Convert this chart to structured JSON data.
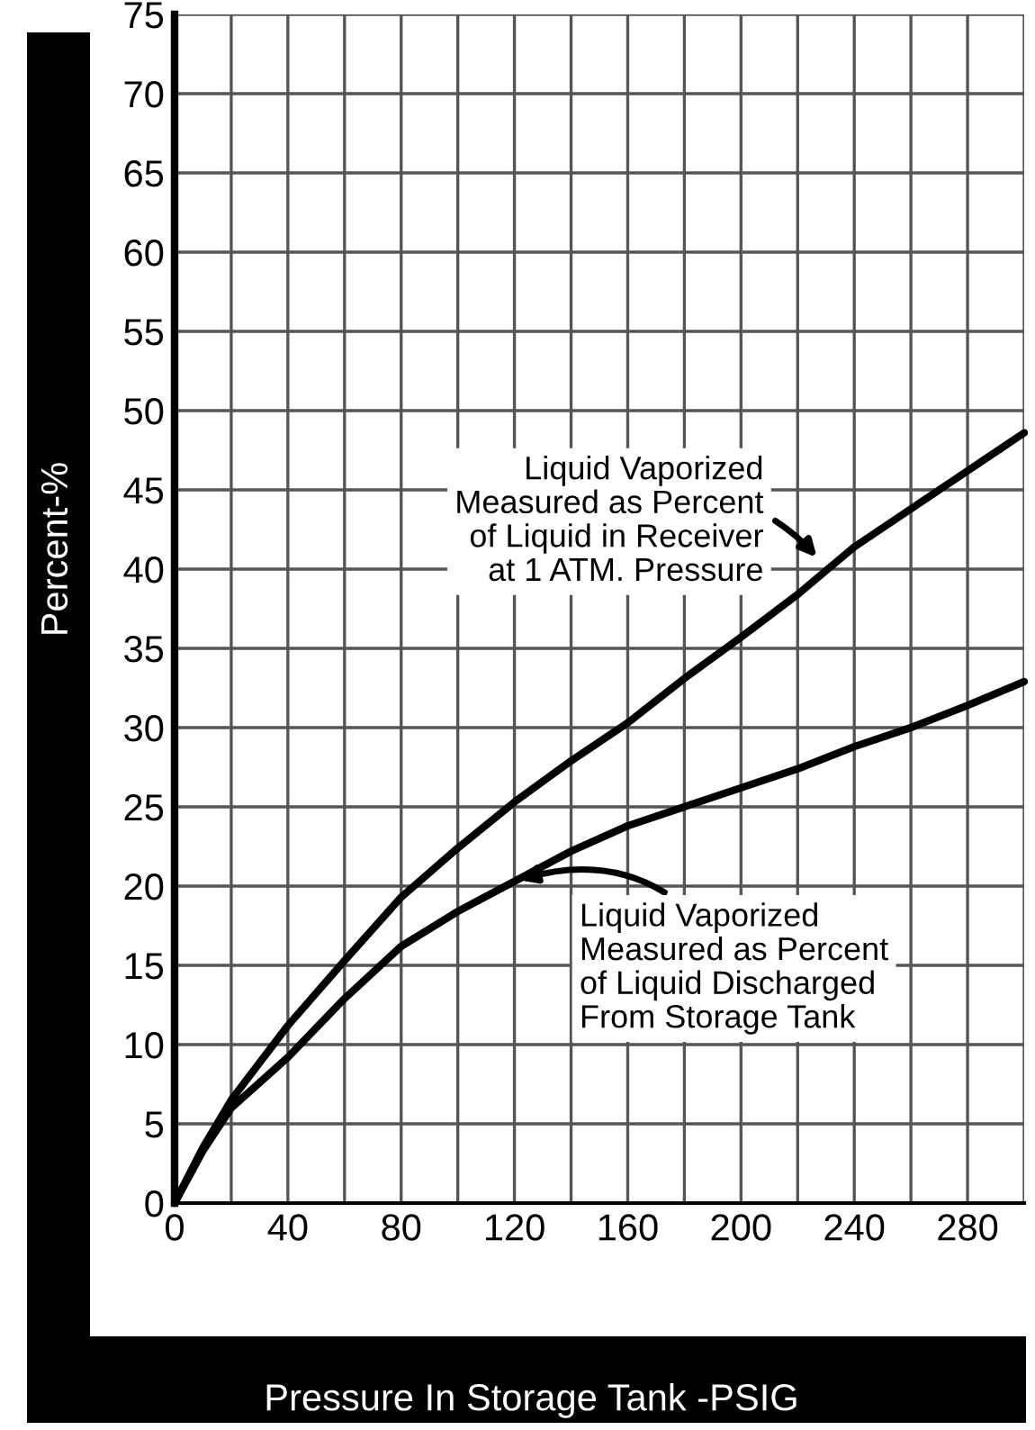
{
  "chart_data": {
    "type": "line",
    "xlabel": "Pressure In Storage Tank -PSIG",
    "ylabel": "Percent-%",
    "xlim": [
      0,
      300
    ],
    "ylim": [
      0,
      75
    ],
    "xticks": [
      0,
      {
        "value": 20,
        "label": null
      },
      40,
      {
        "value": 60,
        "label": null
      },
      80,
      {
        "value": 100,
        "label": null
      },
      120,
      {
        "value": 140,
        "label": null
      },
      160,
      {
        "value": 180,
        "label": null
      },
      200,
      {
        "value": 220,
        "label": null
      },
      240,
      {
        "value": 260,
        "label": null
      },
      280,
      {
        "value": 300,
        "label": null
      }
    ],
    "yticks": [
      0,
      5,
      10,
      15,
      20,
      25,
      30,
      35,
      40,
      45,
      50,
      55,
      60,
      65,
      70,
      75
    ],
    "grid": true,
    "marker": "none",
    "line_style": "solid",
    "series": [
      {
        "color": "#000000",
        "x": [
          0,
          10,
          20,
          40,
          60,
          80,
          100,
          120,
          140,
          160,
          180,
          200,
          220,
          240,
          260,
          280,
          300
        ],
        "values": [
          0,
          3.5,
          6.5,
          11.2,
          15.3,
          19.3,
          22.4,
          25.3,
          27.9,
          30.3,
          33.1,
          35.7,
          38.4,
          41.4,
          43.8,
          46.2,
          48.6
        ]
      },
      {
        "color": "#000000",
        "x": [
          0,
          10,
          20,
          40,
          60,
          80,
          100,
          120,
          140,
          160,
          180,
          200,
          220,
          240,
          260,
          280,
          300
        ],
        "values": [
          0,
          3.3,
          6.0,
          9.2,
          12.9,
          16.2,
          18.4,
          20.3,
          22.2,
          23.8,
          25.0,
          26.2,
          27.4,
          28.8,
          30.0,
          31.4,
          32.9
        ]
      }
    ],
    "annotations": [
      {
        "text": "Liquid Vaporized\nMeasured as Percent\nof Liquid in Receiver\nat 1 ATM. Pressure",
        "x": 228,
        "y": 40.5
      },
      {
        "text": "Liquid Vaporized\nMeasured as Percent\nof Liquid Discharged\nFrom Storage Tank",
        "x": 120,
        "y": 20.3
      }
    ]
  }
}
